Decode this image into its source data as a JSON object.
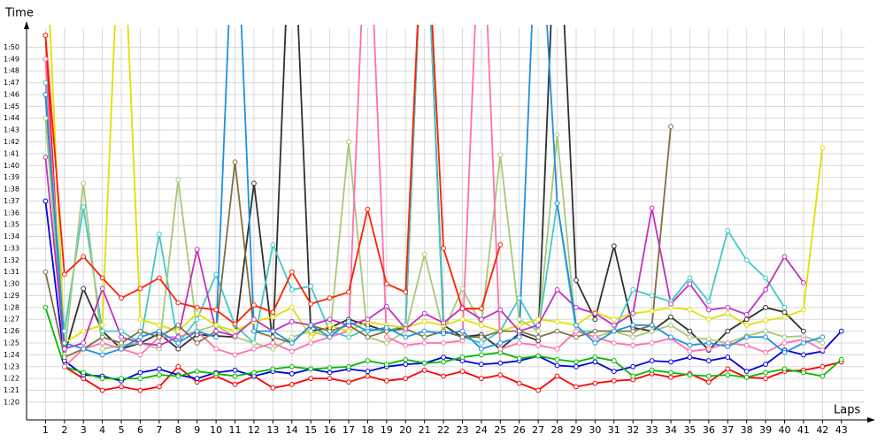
{
  "chart_data": {
    "type": "line",
    "y_label": "Time",
    "x_label": "Laps",
    "grid": true,
    "x": [
      1,
      2,
      3,
      4,
      5,
      6,
      7,
      8,
      9,
      10,
      11,
      12,
      13,
      14,
      15,
      16,
      17,
      18,
      19,
      20,
      21,
      22,
      23,
      24,
      25,
      26,
      27,
      28,
      29,
      30,
      31,
      32,
      33,
      34,
      35,
      36,
      37,
      38,
      39,
      40,
      41,
      42,
      43
    ],
    "xlim": [
      0,
      44.6
    ],
    "xticks": [
      1,
      2,
      3,
      4,
      5,
      6,
      7,
      8,
      9,
      10,
      11,
      12,
      13,
      14,
      15,
      16,
      17,
      18,
      19,
      20,
      21,
      22,
      23,
      24,
      25,
      26,
      27,
      28,
      29,
      30,
      31,
      32,
      33,
      34,
      35,
      36,
      37,
      38,
      39,
      40,
      41,
      42,
      43
    ],
    "ylim": [
      78.5,
      111.9
    ],
    "yticks": [
      {
        "value": 80,
        "label": "1:20"
      },
      {
        "value": 81,
        "label": "1:21"
      },
      {
        "value": 82,
        "label": "1:22"
      },
      {
        "value": 83,
        "label": "1:23"
      },
      {
        "value": 84,
        "label": "1:24"
      },
      {
        "value": 85,
        "label": "1:25"
      },
      {
        "value": 86,
        "label": "1:26"
      },
      {
        "value": 87,
        "label": "1:27"
      },
      {
        "value": 88,
        "label": "1:28"
      },
      {
        "value": 89,
        "label": "1:29"
      },
      {
        "value": 90,
        "label": "1:30"
      },
      {
        "value": 91,
        "label": "1:31"
      },
      {
        "value": 92,
        "label": "1:32"
      },
      {
        "value": 93,
        "label": "1:33"
      },
      {
        "value": 94,
        "label": "1:34"
      },
      {
        "value": 95,
        "label": "1:35"
      },
      {
        "value": 96,
        "label": "1:36"
      },
      {
        "value": 97,
        "label": "1:37"
      },
      {
        "value": 98,
        "label": "1:38"
      },
      {
        "value": 99,
        "label": "1:39"
      },
      {
        "value": 100,
        "label": "1:40"
      },
      {
        "value": 101,
        "label": "1:41"
      },
      {
        "value": 102,
        "label": "1:42"
      },
      {
        "value": 103,
        "label": "1:43"
      },
      {
        "value": 104,
        "label": "1:44"
      },
      {
        "value": 105,
        "label": "1:45"
      },
      {
        "value": 106,
        "label": "1:46"
      },
      {
        "value": 107,
        "label": "1:47"
      },
      {
        "value": 108,
        "label": "1:48"
      },
      {
        "value": 109,
        "label": "1:49"
      },
      {
        "value": 110,
        "label": "1:50"
      }
    ],
    "series": [
      {
        "color": "#ff0000",
        "values": [
          111,
          83,
          82,
          81,
          81.3,
          81,
          81.3,
          83,
          81.7,
          82.2,
          81.5,
          82.2,
          81.2,
          81.5,
          82,
          82,
          81.7,
          82.2,
          81.8,
          82,
          82.7,
          82.2,
          82.6,
          82,
          82.3,
          81.6,
          81,
          82.2,
          81.3,
          81.6,
          81.8,
          81.9,
          82.4,
          82.1,
          82.4,
          81.7,
          82.8,
          82.1,
          82,
          82.6,
          82.7,
          83,
          83.4
        ]
      },
      {
        "color": "#0000dd",
        "values": [
          97,
          83.5,
          82.3,
          82.2,
          81.8,
          82.5,
          82.8,
          82.3,
          82,
          82.5,
          82.7,
          82.2,
          82.6,
          82.4,
          82.8,
          82.5,
          82.8,
          82.6,
          83,
          83.2,
          83.3,
          83.8,
          83.5,
          83.2,
          83.3,
          83.5,
          83.9,
          83.1,
          83,
          83.4,
          82.6,
          83,
          83.5,
          83.4,
          83.8,
          83.5,
          83.8,
          82.6,
          83.2,
          84.4,
          84,
          84.3,
          86
        ]
      },
      {
        "color": "#00bb00",
        "values": [
          88,
          83,
          82.5,
          82,
          82,
          82,
          82.3,
          82.2,
          82.6,
          82.4,
          82.2,
          82.5,
          82.8,
          83,
          82.8,
          82.9,
          83,
          83.5,
          83.2,
          83.6,
          83.3,
          83.4,
          83.8,
          84,
          84.2,
          83.7,
          83.9,
          83.6,
          83.4,
          83.8,
          83.5,
          82.2,
          82.7,
          82.5,
          82.3,
          82.2,
          82.3,
          82.1,
          82.5,
          82.8,
          82.5,
          82.2,
          83.6
        ]
      },
      {
        "color": "#303030",
        "values": [
          106,
          84,
          89.6,
          86,
          84.5,
          85,
          85.8,
          84.5,
          85.7,
          85.6,
          85.5,
          98.5,
          85,
          125,
          86,
          86.3,
          87,
          86.5,
          86,
          86.4,
          125,
          86.5,
          85.5,
          85.7,
          84.5,
          85.8,
          85.2,
          125,
          90.3,
          87,
          93.2,
          86.3,
          86,
          87.2,
          86,
          84.4,
          86,
          87,
          88,
          87.6,
          86,
          null,
          null
        ]
      },
      {
        "color": "#40c8c8",
        "values": [
          107,
          86,
          96.5,
          86,
          86,
          85,
          94.2,
          85,
          87,
          90.8,
          86.5,
          85,
          93.3,
          89.5,
          89.8,
          86,
          85.5,
          86.2,
          86,
          86.5,
          125,
          86,
          85.5,
          85,
          86,
          88.8,
          86,
          96.8,
          86,
          86,
          86,
          89.5,
          89,
          88.5,
          90.5,
          88.5,
          94.5,
          92,
          90.5,
          88,
          null,
          null,
          null
        ]
      },
      {
        "color": "#a8c878",
        "values": [
          104,
          84,
          98.5,
          84.5,
          84.8,
          85,
          84.5,
          98.8,
          86,
          86.5,
          85.5,
          85,
          84.5,
          85.5,
          86,
          85.5,
          102,
          85.5,
          85,
          86,
          92.5,
          86,
          89.6,
          86.5,
          100.9,
          87,
          86,
          102.6,
          86,
          85.5,
          86,
          85.5,
          86,
          86.5,
          85.5,
          85.3,
          85,
          85.6,
          86,
          85.5,
          85.6,
          85,
          null
        ]
      },
      {
        "color": "#ff70b0",
        "values": [
          109,
          83,
          84.5,
          85,
          84.5,
          84,
          85.5,
          85.5,
          86,
          84.5,
          84,
          84.5,
          85,
          84.3,
          85,
          85.5,
          86,
          125,
          85.5,
          84.8,
          85,
          85,
          85.2,
          125,
          84.5,
          85,
          84.8,
          84.5,
          86,
          85.5,
          85,
          84.8,
          85,
          85.4,
          84.3,
          84.5,
          85,
          84.8,
          84.2,
          85,
          85.3,
          84.4,
          null
        ]
      },
      {
        "color": "#e0e000",
        "values": [
          120,
          85,
          86,
          86.5,
          125,
          87,
          86.5,
          86,
          87.5,
          86.5,
          86,
          86.8,
          87.2,
          88,
          85.5,
          86.5,
          86,
          86.8,
          86.5,
          86.3,
          86.8,
          86.5,
          87,
          86.5,
          86,
          86.5,
          87,
          86.8,
          86.5,
          87.6,
          87,
          87.5,
          87.7,
          88,
          87.8,
          87,
          87.5,
          86.5,
          86.9,
          87.2,
          87.8,
          101.5,
          null
        ]
      },
      {
        "color": "#807040",
        "values": [
          91,
          83.8,
          84.5,
          85.5,
          85,
          86,
          85.5,
          86.5,
          85,
          86,
          100.3,
          86,
          85.5,
          85,
          86.5,
          86,
          86.5,
          85.5,
          86,
          86.2,
          85.5,
          86,
          85.5,
          85.5,
          86,
          86,
          85.5,
          86,
          85.5,
          86,
          86,
          86,
          86.5,
          103.3,
          null,
          null,
          null,
          null,
          null,
          null,
          null,
          null,
          null
        ]
      },
      {
        "color": "#c030c0",
        "values": [
          100.7,
          84.5,
          85,
          89.6,
          85.5,
          85,
          84.8,
          85.5,
          92.9,
          86,
          85.6,
          87,
          86,
          86.8,
          86.5,
          87,
          86.5,
          87,
          88.1,
          86.2,
          87.5,
          86.7,
          88,
          87,
          87.8,
          86,
          86.5,
          89.5,
          88,
          87.5,
          86.5,
          87.5,
          96.4,
          88.3,
          90,
          87.8,
          88,
          87.4,
          89.5,
          92.3,
          90.1,
          null,
          null
        ]
      },
      {
        "color": "#ff2000",
        "values": [
          111,
          90.8,
          92.3,
          90.5,
          88.8,
          89.6,
          90.5,
          88.4,
          88,
          87.8,
          86.6,
          88.2,
          87.6,
          91,
          88.3,
          88.8,
          89.3,
          96.3,
          90,
          89.3,
          125,
          93,
          87.9,
          87.9,
          93.3,
          null,
          null,
          null,
          null,
          null,
          null,
          null,
          null,
          null,
          null,
          null,
          null,
          null,
          null,
          null,
          null,
          null,
          null
        ]
      },
      {
        "color": "#2090e0",
        "values": [
          106,
          85,
          84.5,
          84,
          84.5,
          85.5,
          86,
          85,
          86,
          85.5,
          125,
          86,
          86,
          85,
          86.5,
          85.5,
          86.8,
          86,
          86.3,
          85.5,
          86,
          85.8,
          86,
          84.5,
          85,
          85.5,
          125,
          96.8,
          86.5,
          85,
          86,
          86.5,
          86.5,
          85.5,
          84.8,
          85,
          84.7,
          85.5,
          85.5,
          84.2,
          85,
          85.5,
          null
        ]
      }
    ]
  }
}
